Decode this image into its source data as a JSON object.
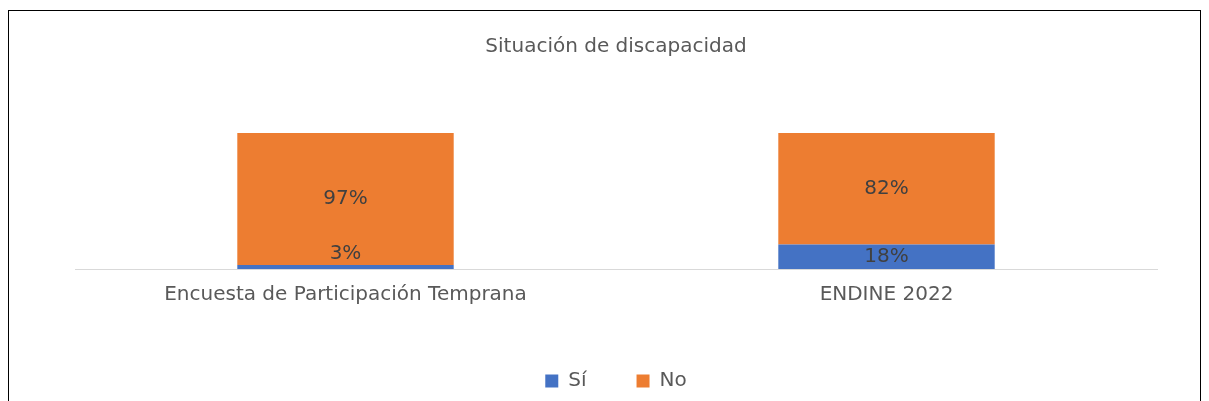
{
  "chart_data": {
    "type": "bar",
    "title": "Situación de discapacidad",
    "stacked": true,
    "categories": [
      "Encuesta de Participación Temprana",
      "ENDINE 2022"
    ],
    "legend": "bottom",
    "grid": false,
    "series": [
      {
        "name": "Sí",
        "color": "#4472c4",
        "values": [
          3,
          18
        ],
        "value_labels": [
          "3%",
          "18%"
        ]
      },
      {
        "name": "No",
        "color": "#ed7d31",
        "values": [
          97,
          82
        ],
        "value_labels": [
          "97%",
          "82%"
        ]
      }
    ]
  }
}
